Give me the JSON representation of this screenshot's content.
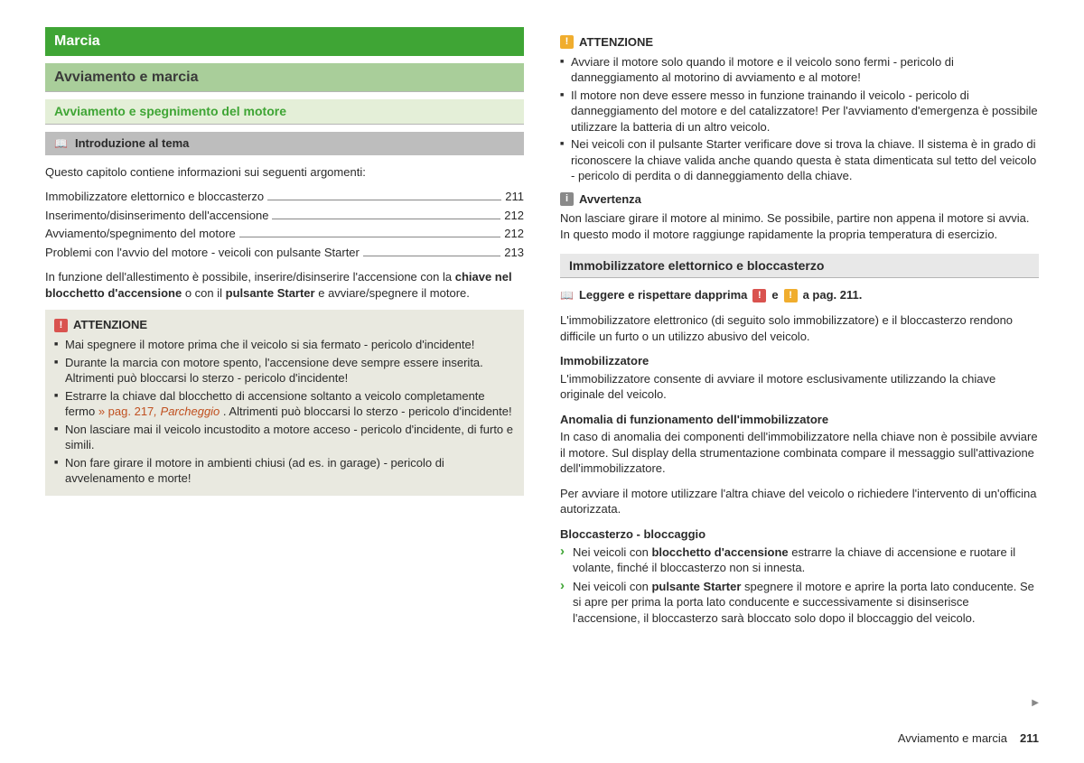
{
  "colors": {
    "green": "#3fa535",
    "lightgreen": "#a9ce9a",
    "palegreen": "#e4efd8",
    "grey": "#bdbdbd",
    "box": "#e9e9e0",
    "ref": "#c05020"
  },
  "left": {
    "h1": "Marcia",
    "h2": "Avviamento e marcia",
    "h3": "Avviamento e spegnimento del motore",
    "topic": "Introduzione al tema",
    "intro": "Questo capitolo contiene informazioni sui seguenti argomenti:",
    "toc": [
      {
        "label": "Immobilizzatore elettornico e bloccasterzo",
        "page": "211"
      },
      {
        "label": "Inserimento/disinserimento dell'accensione",
        "page": "212"
      },
      {
        "label": "Avviamento/spegnimento del motore",
        "page": "212"
      },
      {
        "label": "Problemi con l'avvio del motore - veicoli con pulsante Starter",
        "page": "213"
      }
    ],
    "body_pre": "In funzione dell'allestimento è possibile, inserire/disinserire l'accensione con la ",
    "body_b1": "chiave nel blocchetto d'accensione",
    "body_mid": " o con il ",
    "body_b2": "pulsante Starter",
    "body_end": " e avviare/spegnere il motore.",
    "warn_title": "ATTENZIONE",
    "warn_items": [
      "Mai spegnere il motore prima che il veicolo si sia fermato - pericolo d'incidente!",
      "Durante la marcia con motore spento, l'accensione deve sempre essere inserita. Altrimenti può bloccarsi lo sterzo - pericolo d'incidente!"
    ],
    "warn_item3_pre": "Estrarre la chiave dal blocchetto di accensione soltanto a veicolo completamente fermo ",
    "warn_item3_ref": "» pag. 217",
    "warn_item3_ref2": ", Parcheggio",
    "warn_item3_end": ". Altrimenti può bloccarsi lo sterzo - pericolo d'incidente!",
    "warn_items2": [
      "Non lasciare mai il veicolo incustodito a motore acceso - pericolo d'incidente, di furto e simili.",
      "Non fare girare il motore in ambienti chiusi (ad es. in garage) - pericolo di avvelenamento e morte!"
    ]
  },
  "right": {
    "warn_title": "ATTENZIONE",
    "warn_items": [
      "Avviare il motore solo quando il motore e il veicolo sono fermi - pericolo di danneggiamento al motorino di avviamento e al motore!",
      "Il motore non deve essere messo in funzione trainando il veicolo - pericolo di danneggiamento del motore e del catalizzatore! Per l'avviamento d'emergenza è possibile utilizzare la batteria di un altro veicolo.",
      "Nei veicoli con il pulsante Starter verificare dove si trova la chiave. Il sistema è in grado di riconoscere la chiave valida anche quando questa è stata dimenticata sul tetto del veicolo - pericolo di perdita o di danneggiamento della chiave."
    ],
    "note_title": "Avvertenza",
    "note_body": "Non lasciare girare il motore al minimo. Se possibile, partire non appena il motore si avvia. In questo modo il motore raggiunge rapidamente la propria temperatura di esercizio.",
    "h_section": "Immobilizzatore elettornico e bloccasterzo",
    "read_pre": "Leggere e rispettare dapprima",
    "read_mid": "e",
    "read_end": "a pag. 211.",
    "body1": "L'immobilizzatore elettronico (di seguito solo immobilizzatore) e il bloccasterzo rendono difficile un furto o un utilizzo abusivo del veicolo.",
    "sub1": "Immobilizzatore",
    "sub1_body": "L'immobilizzatore consente di avviare il motore esclusivamente utilizzando la chiave originale del veicolo.",
    "sub2": "Anomalia di funzionamento dell'immobilizzatore",
    "sub2_body": "In caso di anomalia dei componenti dell'immobilizzatore nella chiave non è possibile avviare il motore. Sul display della strumentazione combinata compare il messaggio sull'attivazione dell'immobilizzatore.",
    "sub2_body2": "Per avviare il motore utilizzare l'altra chiave del veicolo o richiedere l'intervento di un'officina autorizzata.",
    "sub3": "Bloccasterzo - bloccaggio",
    "arrow1_pre": "Nei veicoli con ",
    "arrow1_b": "blocchetto d'accensione",
    "arrow1_end": " estrarre la chiave di accensione e ruotare il volante, finché il bloccasterzo non si innesta.",
    "arrow2_pre": "Nei veicoli con ",
    "arrow2_b": "pulsante Starter",
    "arrow2_end": " spegnere il motore e aprire la porta lato conducente. Se si apre per prima la porta lato conducente e successivamente si disinserisce l'accensione, il bloccasterzo sarà bloccato solo dopo il bloccaggio del veicolo."
  },
  "footer": {
    "label": "Avviamento e marcia",
    "page": "211"
  }
}
